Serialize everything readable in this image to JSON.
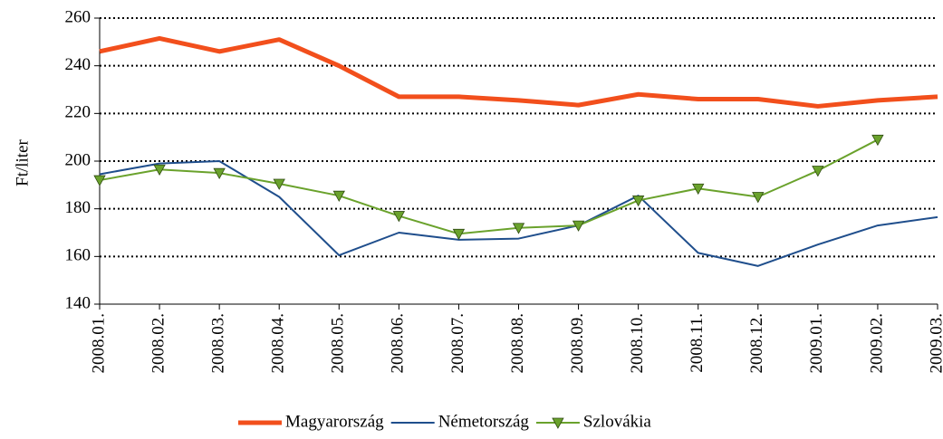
{
  "chart_data": {
    "type": "line",
    "y_label": "Ft/liter",
    "categories": [
      "2008.01.",
      "2008.02.",
      "2008.03.",
      "2008.04.",
      "2008.05.",
      "2008.06.",
      "2008.07.",
      "2008.08.",
      "2008.09.",
      "2008.10.",
      "2008.11.",
      "2008.12.",
      "2009.01.",
      "2009.02.",
      "2009.03."
    ],
    "series": [
      {
        "name": "Magyarország",
        "color": "#f24f1c",
        "values": [
          246,
          251.5,
          246,
          251,
          240,
          227,
          227,
          225.5,
          223.5,
          228,
          226,
          226,
          223,
          225.5,
          227
        ]
      },
      {
        "name": "Németország",
        "color": "#1f4e8c",
        "values": [
          194.5,
          199,
          200,
          185,
          160.5,
          170,
          167,
          167.5,
          173,
          185.5,
          161.5,
          156,
          165,
          173,
          176.5
        ]
      },
      {
        "name": "Szlovákia",
        "color": "#6aa22c",
        "marker": "triangle-down",
        "values": [
          192,
          196.5,
          195,
          190.5,
          185.5,
          177,
          169.5,
          172,
          173,
          183.5,
          188.5,
          185,
          196,
          209,
          null
        ]
      }
    ],
    "ylim": [
      140,
      260
    ],
    "yticks": [
      140,
      160,
      180,
      200,
      220,
      240,
      260
    ],
    "grid": true,
    "legend": "bottom"
  }
}
